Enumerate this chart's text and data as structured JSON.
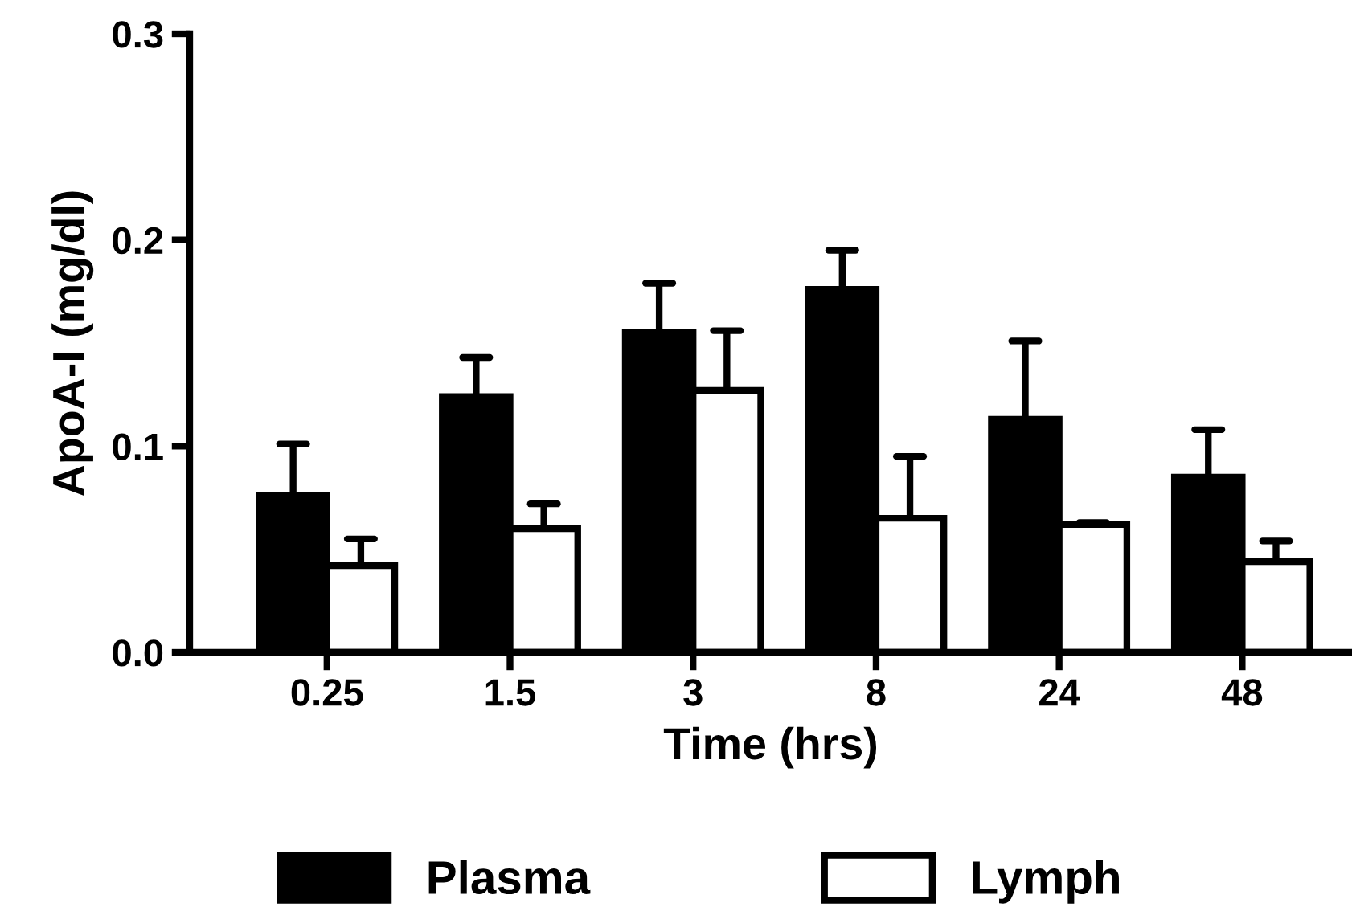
{
  "chart_data": {
    "type": "bar",
    "xlabel": "Time (hrs)",
    "ylabel": "ApoA-I (mg/dl)",
    "categories": [
      "0.25",
      "1.5",
      "3",
      "8",
      "24",
      "48"
    ],
    "series": [
      {
        "name": "Plasma",
        "color": "#000000",
        "values": [
          0.076,
          0.124,
          0.155,
          0.176,
          0.113,
          0.085
        ],
        "errors": [
          [
            0.076,
            0.101
          ],
          [
            0.124,
            0.143
          ],
          [
            0.155,
            0.179
          ],
          [
            0.176,
            0.195
          ],
          [
            0.113,
            0.151
          ],
          [
            0.085,
            0.108
          ]
        ]
      },
      {
        "name": "Lymph",
        "color": "#ffffff",
        "values": [
          0.042,
          0.06,
          0.127,
          0.065,
          0.062,
          0.044
        ],
        "errors": [
          [
            0.042,
            0.055
          ],
          [
            0.06,
            0.072
          ],
          [
            0.127,
            0.156
          ],
          [
            0.065,
            0.095
          ],
          [
            0.062,
            0.063
          ],
          [
            0.044,
            0.054
          ]
        ]
      }
    ],
    "ylim": [
      0,
      0.3
    ],
    "yticks": [
      {
        "value": 0,
        "label": "0.0"
      },
      0.1,
      0.2,
      0.3
    ],
    "grid": false,
    "legend": "bottom"
  }
}
